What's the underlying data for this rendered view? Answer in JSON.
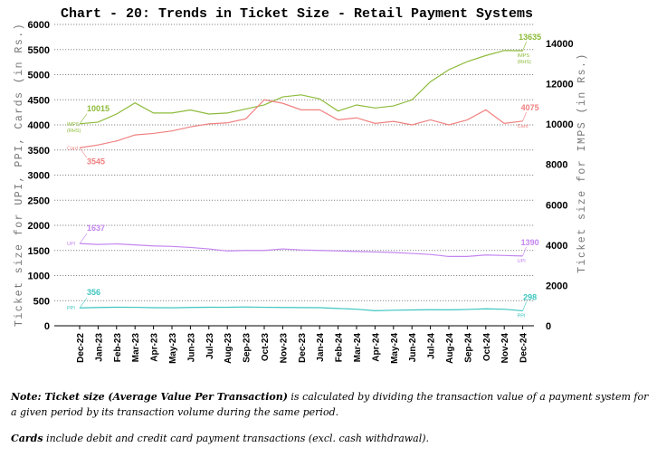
{
  "chart_data": {
    "type": "line",
    "title": "Chart - 20: Trends in Ticket Size - Retail Payment Systems",
    "xlabel": "",
    "ylabel": "Ticket size for UPI, PPI, Cards (in Rs.)",
    "y2label": "Ticket size for IMPS (in Rs.)",
    "ylim": [
      0,
      6000
    ],
    "y2lim": [
      0,
      14000
    ],
    "yticks": [
      "0",
      "500",
      "1000",
      "1500",
      "2000",
      "2500",
      "3000",
      "3500",
      "4000",
      "4500",
      "5000",
      "5500",
      "6000"
    ],
    "y2ticks": [
      "0",
      "2000",
      "4000",
      "6000",
      "8000",
      "10000",
      "12000",
      "14000"
    ],
    "grid": true,
    "categories": [
      "Dec-22",
      "Jan-23",
      "Feb-23",
      "Mar-23",
      "Apr-23",
      "May-23",
      "Jun-23",
      "Jul-23",
      "Aug-23",
      "Sep-23",
      "Oct-23",
      "Nov-23",
      "Dec-23",
      "Jan-24",
      "Feb-24",
      "Mar-24",
      "Apr-24",
      "May-24",
      "Jun-24",
      "Jul-24",
      "Aug-24",
      "Sep-24",
      "Oct-24",
      "Nov-24",
      "Dec-24"
    ],
    "series": [
      {
        "name": "IMPS (RHS)",
        "axis": "right",
        "color": "#8dbb3a",
        "values": [
          10015,
          10100,
          10500,
          11050,
          10550,
          10550,
          10700,
          10500,
          10550,
          10750,
          10950,
          11350,
          11450,
          11250,
          10650,
          10950,
          10800,
          10900,
          11200,
          12100,
          12700,
          13100,
          13400,
          13650,
          13635
        ],
        "start_label": "10015",
        "end_label": "13635"
      },
      {
        "name": "Card",
        "axis": "left",
        "color": "#f08080",
        "values": [
          3545,
          3600,
          3680,
          3800,
          3830,
          3880,
          3960,
          4020,
          4040,
          4120,
          4500,
          4430,
          4300,
          4300,
          4100,
          4140,
          4030,
          4070,
          4000,
          4100,
          4000,
          4100,
          4300,
          4030,
          4075
        ],
        "start_label": "3545",
        "end_label": "4075"
      },
      {
        "name": "UPI",
        "axis": "left",
        "color": "#c386f0",
        "values": [
          1637,
          1620,
          1630,
          1610,
          1590,
          1580,
          1560,
          1530,
          1490,
          1500,
          1500,
          1530,
          1510,
          1500,
          1490,
          1480,
          1470,
          1460,
          1440,
          1420,
          1380,
          1380,
          1410,
          1400,
          1390
        ],
        "start_label": "1637",
        "end_label": "1390"
      },
      {
        "name": "PPI",
        "axis": "left",
        "color": "#3ec6c0",
        "values": [
          356,
          365,
          370,
          368,
          360,
          358,
          365,
          370,
          368,
          375,
          368,
          365,
          362,
          360,
          345,
          330,
          300,
          310,
          315,
          320,
          318,
          325,
          338,
          330,
          298
        ],
        "start_label": "356",
        "end_label": "298"
      }
    ]
  },
  "notes": {
    "note_prefix": "Note: ",
    "note_bold": "Ticket size (Average Value Per Transaction)",
    "note_rest": " is calculated by dividing the transaction value of a payment system for a given period by its transaction volume during the same period.",
    "cards_bold": "Cards",
    "cards_rest": " include debit and credit card payment transactions (excl. cash withdrawal)."
  }
}
